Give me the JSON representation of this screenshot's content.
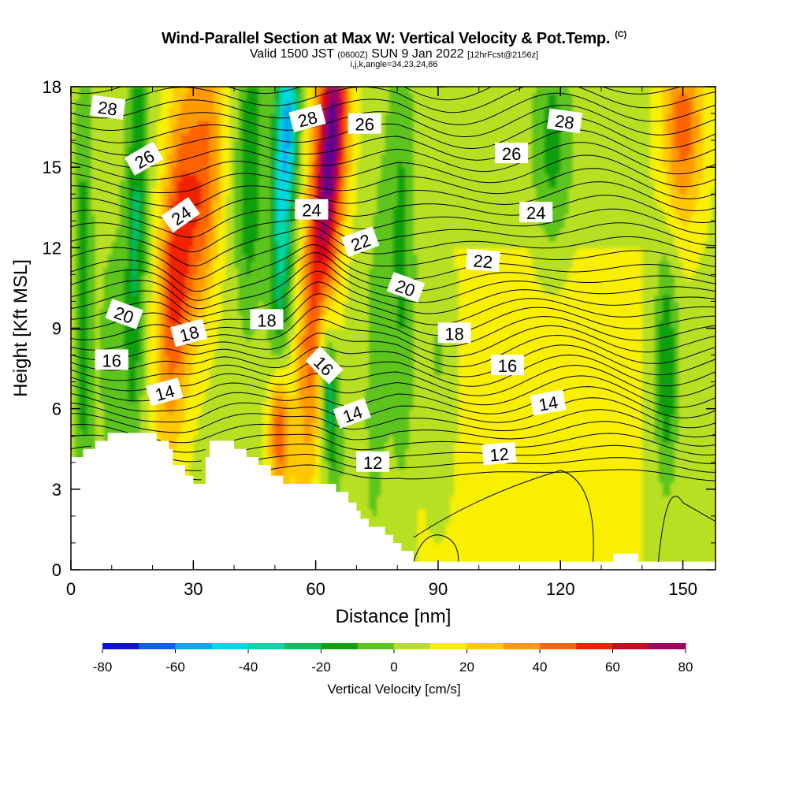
{
  "header": {
    "title": "Wind-Parallel Section at Max W: Vertical Velocity & Pot.Temp.",
    "copyright": "(C)",
    "valid_prefix": "Valid 1500 JST",
    "valid_utc": "(0600Z)",
    "valid_date": "SUN 9 Jan 2022",
    "forecast": "[12hrFcst@2156z]",
    "params": "i,j,k,angle=34,23,24,86"
  },
  "chart_data": {
    "type": "heatmap",
    "xlabel": "Distance [nm]",
    "ylabel": "Height [Kft MSL]",
    "xlim": [
      0,
      158
    ],
    "ylim": [
      0,
      18
    ],
    "xticks": [
      0,
      30,
      60,
      90,
      120,
      150
    ],
    "yticks": [
      0,
      3,
      6,
      9,
      12,
      15,
      18
    ],
    "colorbar": {
      "label": "Vertical Velocity [cm/s]",
      "ticks": [
        -80,
        -60,
        -40,
        -20,
        0,
        20,
        40,
        60,
        80
      ],
      "levels": [
        -80,
        -70,
        -60,
        -50,
        -40,
        -30,
        -20,
        -10,
        0,
        10,
        20,
        30,
        40,
        50,
        60,
        70,
        80
      ],
      "colors": [
        "#1010e0",
        "#1060f0",
        "#00a8f0",
        "#00d8e8",
        "#00d8a8",
        "#00c060",
        "#10a010",
        "#5cc41c",
        "#b8e020",
        "#f8f000",
        "#ffc800",
        "#ff9a00",
        "#ff6400",
        "#f02000",
        "#d00020",
        "#a00060",
        "#600090"
      ]
    },
    "theta_contours": {
      "name": "Pot.Temp.",
      "labels": [
        "28",
        "26",
        "24",
        "22",
        "20",
        "18",
        "16",
        "14",
        "12"
      ],
      "levels": [
        12,
        14,
        16,
        18,
        20,
        22,
        24,
        26,
        28
      ]
    },
    "terrain_kft": [
      [
        0,
        4.2
      ],
      [
        3,
        4.2
      ],
      [
        3,
        4.5
      ],
      [
        6,
        4.5
      ],
      [
        6,
        4.8
      ],
      [
        9,
        4.8
      ],
      [
        9,
        5.1
      ],
      [
        12,
        5.1
      ],
      [
        21,
        5.1
      ],
      [
        21,
        4.8
      ],
      [
        24,
        4.8
      ],
      [
        24,
        4.5
      ],
      [
        25,
        4.5
      ],
      [
        25,
        3.9
      ],
      [
        28,
        3.9
      ],
      [
        28,
        3.5
      ],
      [
        30,
        3.5
      ],
      [
        30,
        3.2
      ],
      [
        33,
        3.2
      ],
      [
        33,
        4.2
      ],
      [
        34,
        4.2
      ],
      [
        34,
        4.8
      ],
      [
        40,
        4.8
      ],
      [
        40,
        4.5
      ],
      [
        43,
        4.5
      ],
      [
        43,
        4.2
      ],
      [
        46,
        4.2
      ],
      [
        46,
        3.9
      ],
      [
        49,
        3.9
      ],
      [
        49,
        3.5
      ],
      [
        52,
        3.5
      ],
      [
        52,
        3.2
      ],
      [
        55,
        3.2
      ],
      [
        65,
        3.2
      ],
      [
        65,
        2.9
      ],
      [
        68,
        2.9
      ],
      [
        68,
        2.5
      ],
      [
        70,
        2.5
      ],
      [
        70,
        2.2
      ],
      [
        71,
        2.2
      ],
      [
        71,
        1.9
      ],
      [
        73,
        1.9
      ],
      [
        73,
        1.6
      ],
      [
        77,
        1.6
      ],
      [
        77,
        1.3
      ],
      [
        79,
        1.3
      ],
      [
        79,
        1.0
      ],
      [
        81,
        1.0
      ],
      [
        81,
        0.7
      ],
      [
        84,
        0.7
      ],
      [
        84,
        0.3
      ],
      [
        89,
        0.3
      ],
      [
        133,
        0.3
      ],
      [
        133,
        0.6
      ],
      [
        139,
        0.6
      ],
      [
        139,
        0.3
      ],
      [
        158,
        0.3
      ]
    ]
  }
}
